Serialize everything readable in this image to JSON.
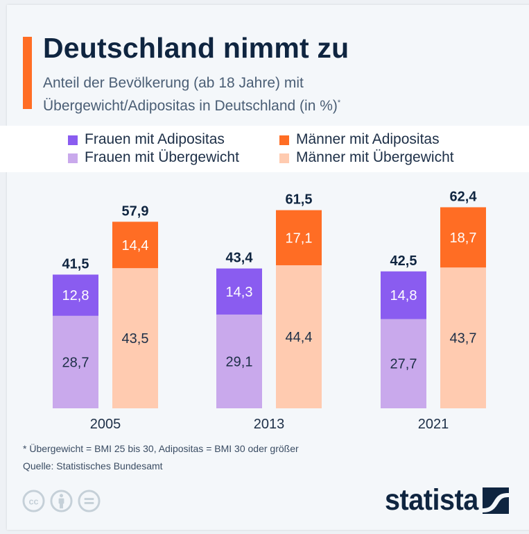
{
  "header": {
    "title": "Deutschland nimmt zu",
    "subtitle_line1": "Anteil der Bevölkerung (ab 18 Jahre) mit",
    "subtitle_line2": "Übergewicht/Adipositas in Deutschland (in %)",
    "subtitle_marker": "*"
  },
  "colors": {
    "accent": "#ff6d24",
    "frauen_adipositas": "#8a5cf0",
    "frauen_uebergewicht": "#c9a9ec",
    "maenner_adipositas": "#ff6d24",
    "maenner_uebergewicht": "#ffcbb0",
    "title": "#0f2540"
  },
  "legend": [
    {
      "label": "Frauen mit Adipositas",
      "color": "#8a5cf0"
    },
    {
      "label": "Männer mit Adipositas",
      "color": "#ff6d24"
    },
    {
      "label": "Frauen mit Übergewicht",
      "color": "#c9a9ec"
    },
    {
      "label": "Männer mit Übergewicht",
      "color": "#ffcbb0"
    }
  ],
  "chart_data": {
    "type": "bar",
    "stacked": true,
    "title": "Deutschland nimmt zu",
    "subtitle": "Anteil der Bevölkerung (ab 18 Jahre) mit Übergewicht/Adipositas in Deutschland (in %)*",
    "xlabel": "",
    "ylabel": "",
    "ylim": [
      0,
      65
    ],
    "grid": false,
    "legend_position": "top",
    "categories": [
      "2005",
      "2013",
      "2021"
    ],
    "groups": [
      {
        "name": "Frauen",
        "series": [
          {
            "name": "Frauen mit Übergewicht",
            "values": [
              28.7,
              29.1,
              27.7
            ],
            "labels": [
              "28,7",
              "29,1",
              "27,7"
            ]
          },
          {
            "name": "Frauen mit Adipositas",
            "values": [
              12.8,
              14.3,
              14.8
            ],
            "labels": [
              "12,8",
              "14,3",
              "14,8"
            ]
          }
        ],
        "totals": [
          41.5,
          43.4,
          42.5
        ],
        "total_labels": [
          "41,5",
          "43,4",
          "42,5"
        ]
      },
      {
        "name": "Männer",
        "series": [
          {
            "name": "Männer mit Übergewicht",
            "values": [
              43.5,
              44.4,
              43.7
            ],
            "labels": [
              "43,5",
              "44,4",
              "43,7"
            ]
          },
          {
            "name": "Männer mit Adipositas",
            "values": [
              14.4,
              17.1,
              18.7
            ],
            "labels": [
              "14,4",
              "17,1",
              "18,7"
            ]
          }
        ],
        "totals": [
          57.9,
          61.5,
          62.4
        ],
        "total_labels": [
          "57,9",
          "61,5",
          "62,4"
        ]
      }
    ]
  },
  "footer": {
    "footnote": "* Übergewicht = BMI 25 bis 30, Adipositas = BMI 30 oder größer",
    "source": "Quelle: Statistisches Bundesamt",
    "license_icons": [
      "cc-icon",
      "attribution-icon",
      "no-derivatives-icon"
    ],
    "logo_text": "statista"
  }
}
